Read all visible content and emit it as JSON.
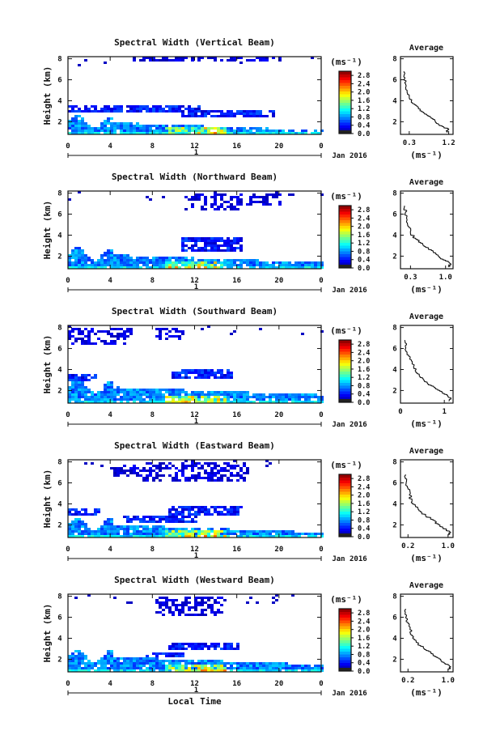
{
  "chart_data": [
    {
      "type": "heatmap",
      "title": "Spectral Width (Vertical Beam)",
      "ylabel": "Height (km)",
      "xticks": [
        "0",
        "4",
        "8",
        "12",
        "16",
        "20",
        "0"
      ],
      "yticks": [
        "2",
        "4",
        "6",
        "8"
      ],
      "xlim": [
        0,
        24
      ],
      "ylim": [
        0.8,
        8.2
      ],
      "date_tick": "1",
      "date_label": "Jan 2016",
      "colorbar": {
        "unit": "(ms⁻¹)",
        "ticks": [
          "0.0",
          "0.4",
          "0.8",
          "1.2",
          "1.6",
          "2.0",
          "2.4",
          "2.8"
        ],
        "range": [
          0,
          3.0
        ]
      },
      "average": {
        "title": "Average",
        "xlabel": "(ms⁻¹)",
        "xticks": [
          "0.3",
          "1.2"
        ],
        "xtick_values": [
          0.3,
          1.2
        ],
        "xlim": [
          0.1,
          1.3
        ],
        "yticks": [
          "2",
          "4",
          "6",
          "8"
        ],
        "profile": [
          [
            1.15,
            1.0
          ],
          [
            1.2,
            1.3
          ],
          [
            1.05,
            1.6
          ],
          [
            0.9,
            2.0
          ],
          [
            0.8,
            2.4
          ],
          [
            0.65,
            2.8
          ],
          [
            0.55,
            3.2
          ],
          [
            0.45,
            3.6
          ],
          [
            0.35,
            4.0
          ],
          [
            0.3,
            4.4
          ],
          [
            0.25,
            5.0
          ],
          [
            0.22,
            5.6
          ],
          [
            0.2,
            6.2
          ],
          [
            0.18,
            6.8
          ]
        ]
      }
    },
    {
      "type": "heatmap",
      "title": "Spectral Width (Northward Beam)",
      "ylabel": "Height (km)",
      "xticks": [
        "0",
        "4",
        "8",
        "12",
        "16",
        "20",
        "0"
      ],
      "yticks": [
        "2",
        "4",
        "6",
        "8"
      ],
      "xlim": [
        0,
        24
      ],
      "ylim": [
        0.8,
        8.2
      ],
      "date_tick": "1",
      "date_label": "Jan 2016",
      "colorbar": {
        "unit": "(ms⁻¹)",
        "ticks": [
          "0.0",
          "0.4",
          "0.8",
          "1.2",
          "1.6",
          "2.0",
          "2.4",
          "2.8"
        ],
        "range": [
          0,
          3.0
        ]
      },
      "average": {
        "title": "Average",
        "xlabel": "(ms⁻¹)",
        "xticks": [
          "0.3",
          "1.0"
        ],
        "xtick_values": [
          0.3,
          1.0
        ],
        "xlim": [
          0.1,
          1.15
        ],
        "yticks": [
          "2",
          "4",
          "6",
          "8"
        ],
        "profile": [
          [
            1.05,
            1.0
          ],
          [
            1.1,
            1.3
          ],
          [
            0.95,
            1.7
          ],
          [
            0.85,
            2.1
          ],
          [
            0.75,
            2.5
          ],
          [
            0.6,
            2.9
          ],
          [
            0.5,
            3.3
          ],
          [
            0.4,
            3.7
          ],
          [
            0.3,
            4.2
          ],
          [
            0.27,
            4.8
          ],
          [
            0.23,
            5.5
          ],
          [
            0.2,
            6.2
          ],
          [
            0.18,
            6.8
          ]
        ]
      }
    },
    {
      "type": "heatmap",
      "title": "Spectral Width (Southward Beam)",
      "ylabel": "Height (km)",
      "xticks": [
        "0",
        "4",
        "8",
        "12",
        "16",
        "20",
        "0"
      ],
      "yticks": [
        "2",
        "4",
        "6",
        "8"
      ],
      "xlim": [
        0,
        24
      ],
      "ylim": [
        0.8,
        8.2
      ],
      "date_tick": "1",
      "date_label": "Jan 2016",
      "colorbar": {
        "unit": "(ms⁻¹)",
        "ticks": [
          "0.0",
          "0.4",
          "0.8",
          "1.2",
          "1.6",
          "2.0",
          "2.4",
          "2.8"
        ],
        "range": [
          0,
          3.0
        ]
      },
      "average": {
        "title": "Average",
        "xlabel": "(ms⁻¹)",
        "xticks": [
          "0",
          "1"
        ],
        "xtick_values": [
          0,
          1
        ],
        "xlim": [
          0,
          1.2
        ],
        "yticks": [
          "2",
          "4",
          "6",
          "8"
        ],
        "profile": [
          [
            1.1,
            1.0
          ],
          [
            1.15,
            1.3
          ],
          [
            1.0,
            1.7
          ],
          [
            0.85,
            2.1
          ],
          [
            0.7,
            2.5
          ],
          [
            0.55,
            2.9
          ],
          [
            0.45,
            3.3
          ],
          [
            0.35,
            3.8
          ],
          [
            0.3,
            4.3
          ],
          [
            0.25,
            4.9
          ],
          [
            0.15,
            5.5
          ],
          [
            0.12,
            6.1
          ],
          [
            0.1,
            6.8
          ]
        ]
      }
    },
    {
      "type": "heatmap",
      "title": "Spectral Width (Eastward Beam)",
      "ylabel": "Height (km)",
      "xticks": [
        "0",
        "4",
        "8",
        "12",
        "16",
        "20",
        "0"
      ],
      "yticks": [
        "2",
        "4",
        "6",
        "8"
      ],
      "xlim": [
        0,
        24
      ],
      "ylim": [
        0.8,
        8.2
      ],
      "date_tick": "1",
      "date_label": "Jan 2016",
      "colorbar": {
        "unit": "(ms⁻¹)",
        "ticks": [
          "0.0",
          "0.4",
          "0.8",
          "1.2",
          "1.6",
          "2.0",
          "2.4",
          "2.8"
        ],
        "range": [
          0,
          3.0
        ]
      },
      "average": {
        "title": "Average",
        "xlabel": "(ms⁻¹)",
        "xticks": [
          "0.2",
          "1.0"
        ],
        "xtick_values": [
          0.2,
          1.0
        ],
        "xlim": [
          0.05,
          1.1
        ],
        "yticks": [
          "2",
          "4",
          "6",
          "8"
        ],
        "profile": [
          [
            1.0,
            1.0
          ],
          [
            1.05,
            1.3
          ],
          [
            0.9,
            1.7
          ],
          [
            0.8,
            2.1
          ],
          [
            0.7,
            2.5
          ],
          [
            0.55,
            2.9
          ],
          [
            0.45,
            3.3
          ],
          [
            0.35,
            3.8
          ],
          [
            0.28,
            4.3
          ],
          [
            0.23,
            4.9
          ],
          [
            0.2,
            5.5
          ],
          [
            0.17,
            6.2
          ],
          [
            0.15,
            6.8
          ]
        ]
      }
    },
    {
      "type": "heatmap",
      "title": "Spectral Width (Westward Beam)",
      "ylabel": "Height (km)",
      "xticks": [
        "0",
        "4",
        "8",
        "12",
        "16",
        "20",
        "0"
      ],
      "yticks": [
        "2",
        "4",
        "6",
        "8"
      ],
      "xlim": [
        0,
        24
      ],
      "ylim": [
        0.8,
        8.2
      ],
      "date_tick": "1",
      "date_label": "Jan 2016",
      "xlabel": "Local Time",
      "colorbar": {
        "unit": "(ms⁻¹)",
        "ticks": [
          "0.0",
          "0.4",
          "0.8",
          "1.2",
          "1.6",
          "2.0",
          "2.4",
          "2.8"
        ],
        "range": [
          0,
          3.0
        ]
      },
      "average": {
        "title": "Average",
        "xlabel": "(ms⁻¹)",
        "xticks": [
          "0.2",
          "1.0"
        ],
        "xtick_values": [
          0.2,
          1.0
        ],
        "xlim": [
          0.05,
          1.1
        ],
        "yticks": [
          "2",
          "4",
          "6",
          "8"
        ],
        "profile": [
          [
            1.0,
            1.0
          ],
          [
            1.05,
            1.3
          ],
          [
            0.92,
            1.7
          ],
          [
            0.82,
            2.1
          ],
          [
            0.7,
            2.5
          ],
          [
            0.56,
            2.9
          ],
          [
            0.45,
            3.3
          ],
          [
            0.36,
            3.8
          ],
          [
            0.28,
            4.3
          ],
          [
            0.24,
            4.9
          ],
          [
            0.2,
            5.5
          ],
          [
            0.17,
            6.2
          ],
          [
            0.15,
            6.8
          ]
        ]
      }
    }
  ]
}
